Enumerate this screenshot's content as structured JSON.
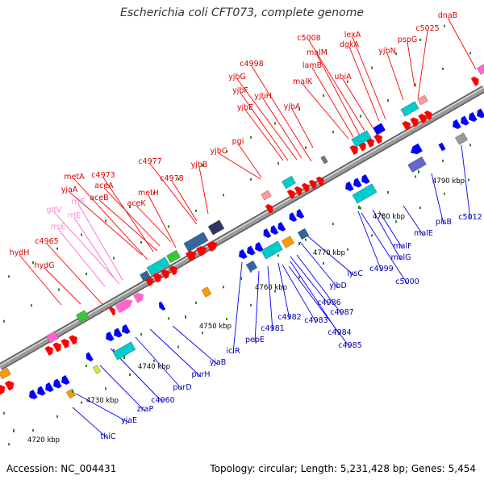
{
  "title": "Escherichia coli CFT073, complete genome",
  "footer": {
    "accession": "Accession: NC_004431",
    "stats": "Topology: circular; Length: 5,231,428 bp; Genes: 5,454"
  },
  "colors": {
    "backbone": "#9a9a9a",
    "forward_gene": "#ff0000",
    "reverse_gene": "#0000ff",
    "rna": "#ff66cc",
    "forward_label": "#dd0000",
    "reverse_label": "#0000aa",
    "rna_label": "#ff88cc"
  },
  "ticks": [
    "4720 kbp",
    "4730 kbp",
    "4740 kbp",
    "4750 kbp",
    "4760 kbp",
    "4770 kbp",
    "4780 kbp",
    "4790 kbp"
  ],
  "forward_genes": [
    "dnaB",
    "c5025",
    "pspG",
    "yjbN",
    "lexA",
    "dgkA",
    "c5008",
    "malM",
    "lamB",
    "ubiA",
    "malK",
    "c4998",
    "yjbG",
    "yjbH",
    "yjbF",
    "yjbA",
    "yjbE",
    "pgi",
    "yjbC",
    "c4977",
    "yjbB",
    "c4978",
    "c4973",
    "metA",
    "yjaA",
    "aceA",
    "aceB",
    "metH",
    "aceK",
    "c4965",
    "hydH",
    "hydG"
  ],
  "rna_genes": [
    "rrfE",
    "gltV",
    "rrlE",
    "rrsE"
  ],
  "reverse_genes": [
    "c5012",
    "plsB",
    "malE",
    "malF",
    "malG",
    "c5000",
    "c4999",
    "lysC",
    "yjbD",
    "c4986",
    "c4987",
    "c4983",
    "c4984",
    "c4985",
    "c4982",
    "c4981",
    "pepE",
    "iclR",
    "yjaB",
    "purH",
    "purD",
    "c4960",
    "zraP",
    "yjaE",
    "thiC"
  ]
}
